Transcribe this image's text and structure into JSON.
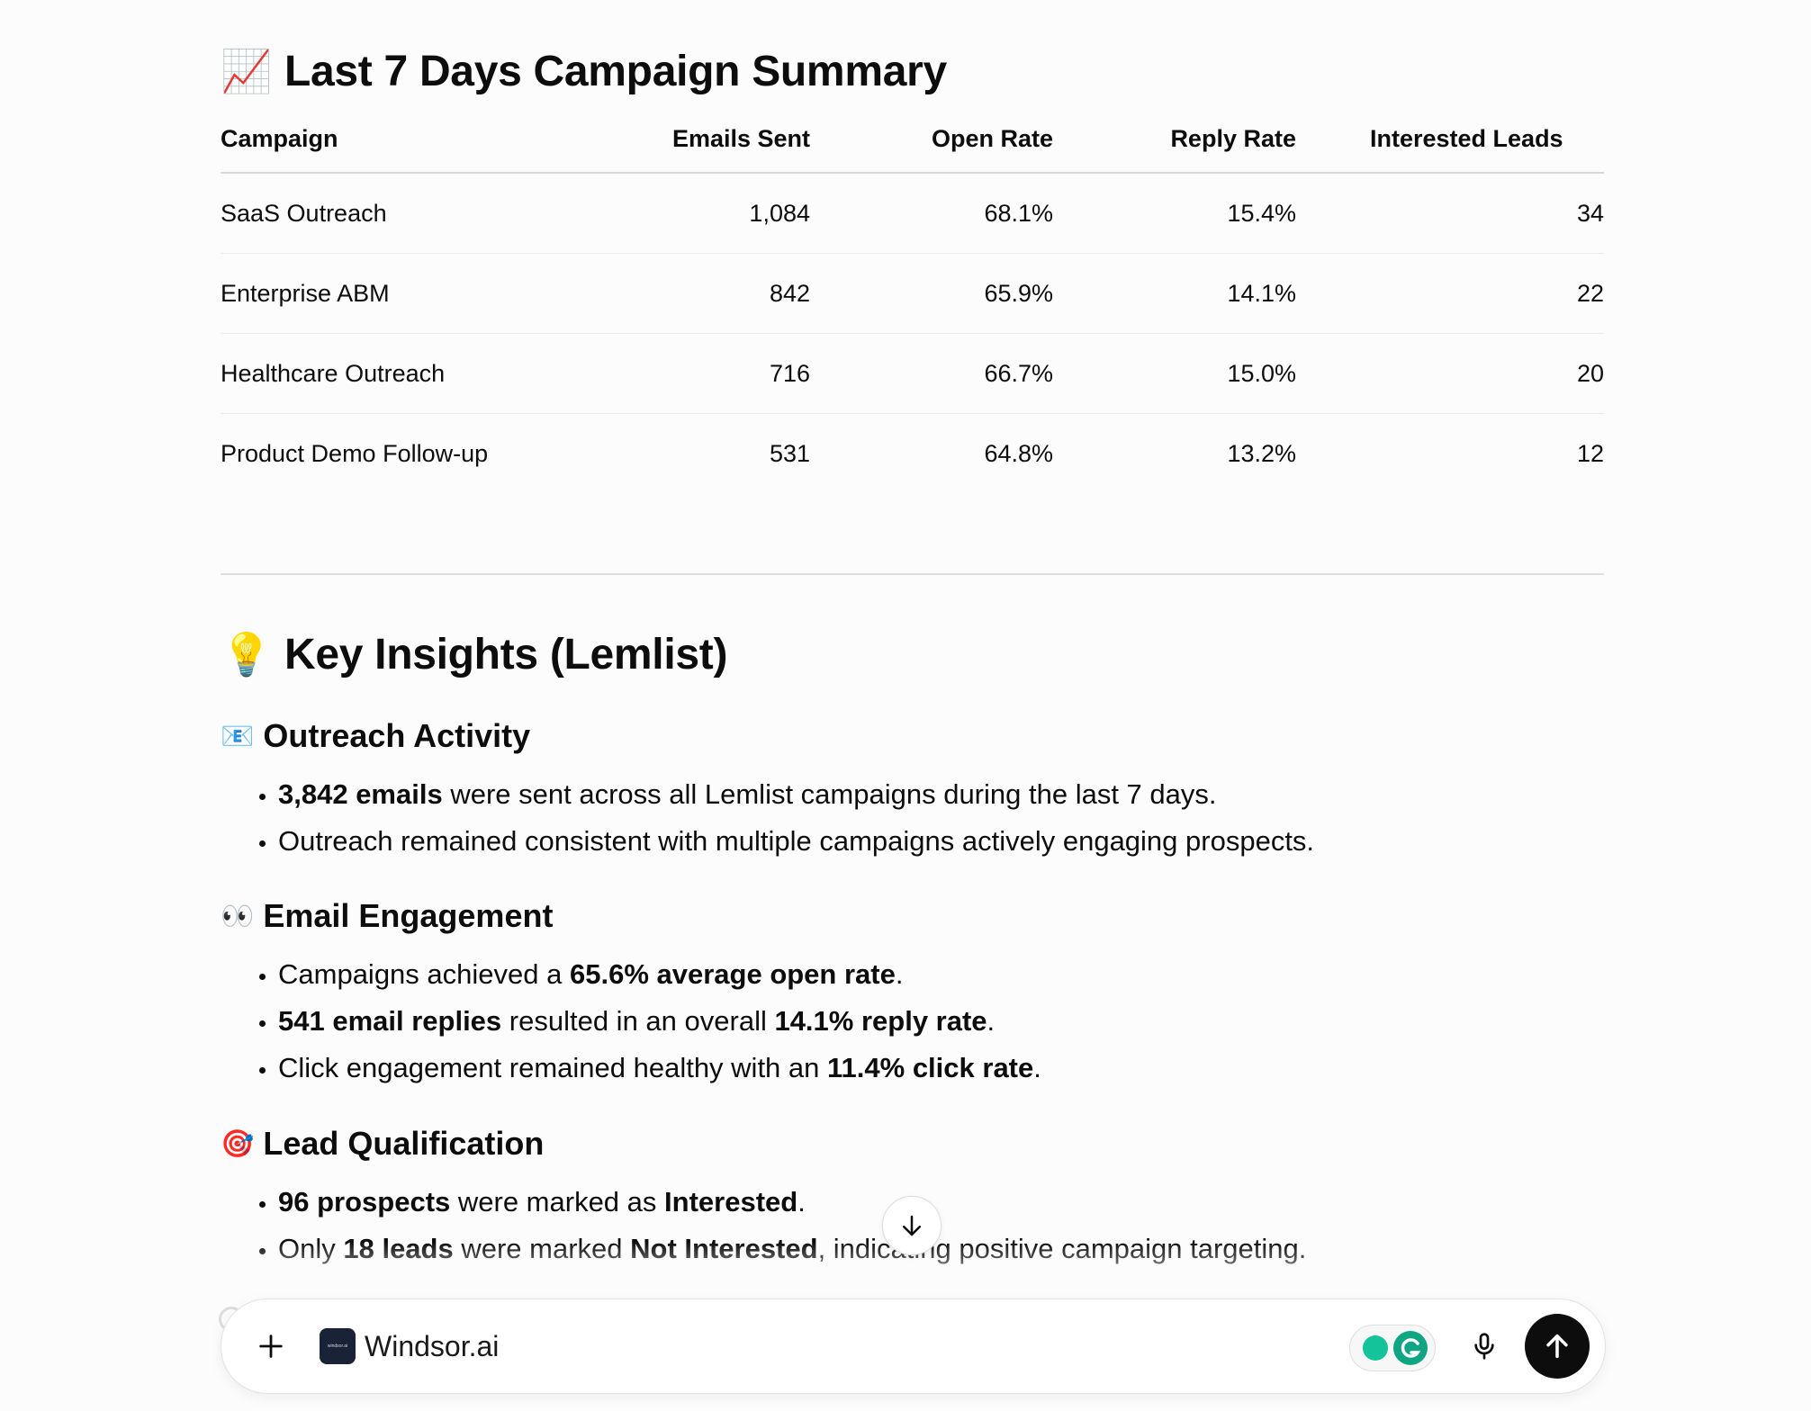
{
  "summary": {
    "emoji": "📈",
    "title": "Last 7 Days Campaign Summary",
    "columns": [
      "Campaign",
      "Emails Sent",
      "Open Rate",
      "Reply Rate",
      "Interested Leads"
    ],
    "rows": [
      [
        "SaaS Outreach",
        "1,084",
        "68.1%",
        "15.4%",
        "34"
      ],
      [
        "Enterprise ABM",
        "842",
        "65.9%",
        "14.1%",
        "22"
      ],
      [
        "Healthcare Outreach",
        "716",
        "66.7%",
        "15.0%",
        "20"
      ],
      [
        "Product Demo Follow-up",
        "531",
        "64.8%",
        "13.2%",
        "12"
      ]
    ]
  },
  "insights": {
    "emoji": "💡",
    "title": "Key Insights (Lemlist)",
    "outreach": {
      "emoji": "📧",
      "title": "Outreach Activity",
      "b1_bold": "3,842 emails",
      "b1_rest": " were sent across all Lemlist campaigns during the last 7 days.",
      "b2": "Outreach remained consistent with multiple campaigns actively engaging prospects."
    },
    "engagement": {
      "emoji": "👀",
      "title": "Email Engagement",
      "b1_pre": "Campaigns achieved a ",
      "b1_bold": "65.6% average open rate",
      "b1_post": ".",
      "b2_bold1": "541 email replies",
      "b2_mid": " resulted in an overall ",
      "b2_bold2": "14.1% reply rate",
      "b2_post": ".",
      "b3_pre": "Click engagement remained healthy with an ",
      "b3_bold": "11.4% click rate",
      "b3_post": "."
    },
    "qualification": {
      "emoji": "🎯",
      "title": "Lead Qualification",
      "b1_bold1": "96 prospects",
      "b1_mid": " were marked as ",
      "b1_bold2": "Interested",
      "b1_post": ".",
      "b2_pre": "Only ",
      "b2_bold1": "18 leads",
      "b2_mid": " were marked ",
      "b2_bold2": "Not Interested",
      "b2_post": ", indicating positive campaign targeting."
    }
  },
  "composer": {
    "connector_logo_text": "windsor.ai",
    "connector_label": "Windsor.ai"
  }
}
